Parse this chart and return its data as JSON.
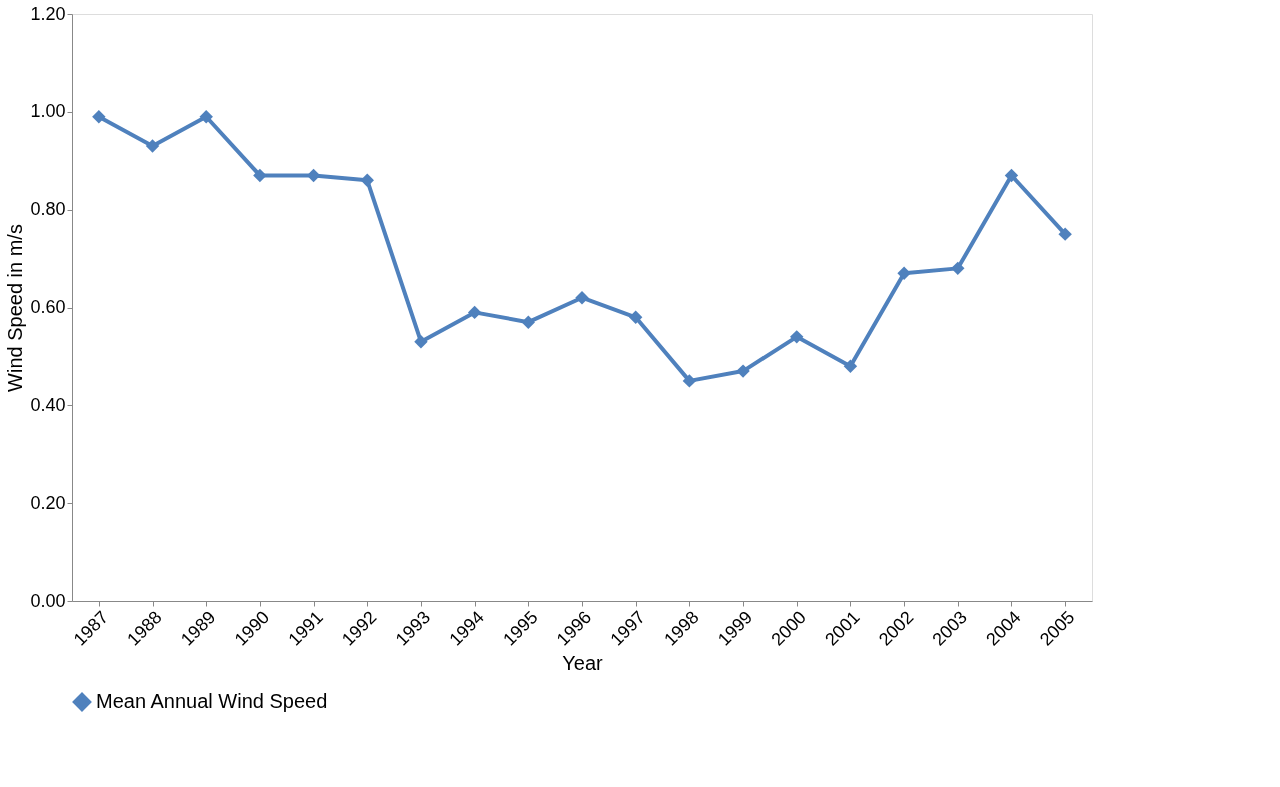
{
  "chart_data": {
    "type": "line",
    "xlabel": "Year",
    "ylabel": "Wind Speed in m/s",
    "categories": [
      "1987",
      "1988",
      "1989",
      "1990",
      "1991",
      "1992",
      "1993",
      "1994",
      "1995",
      "1996",
      "1997",
      "1998",
      "1999",
      "2000",
      "2001",
      "2002",
      "2003",
      "2004",
      "2005"
    ],
    "series": [
      {
        "name": "Mean Annual Wind Speed",
        "color": "#4f81bd",
        "values": [
          0.99,
          0.93,
          0.99,
          0.87,
          0.87,
          0.86,
          0.53,
          0.59,
          0.57,
          0.62,
          0.58,
          0.45,
          0.47,
          0.54,
          0.48,
          0.67,
          0.68,
          0.87,
          0.75
        ]
      }
    ],
    "ylim": [
      0,
      1.2
    ],
    "yticks": [
      {
        "value": 0,
        "label": "0.00"
      },
      {
        "value": 0.2,
        "label": "0.20"
      },
      {
        "value": 0.4,
        "label": "0.40"
      },
      {
        "value": 0.6,
        "label": "0.60"
      },
      {
        "value": 0.8,
        "label": "0.80"
      },
      {
        "value": 1.0,
        "label": "1.00"
      },
      {
        "value": 1.2,
        "label": "1.20"
      }
    ],
    "grid": false,
    "legend": "bottom",
    "marker": "diamond",
    "line_style": "solid"
  }
}
